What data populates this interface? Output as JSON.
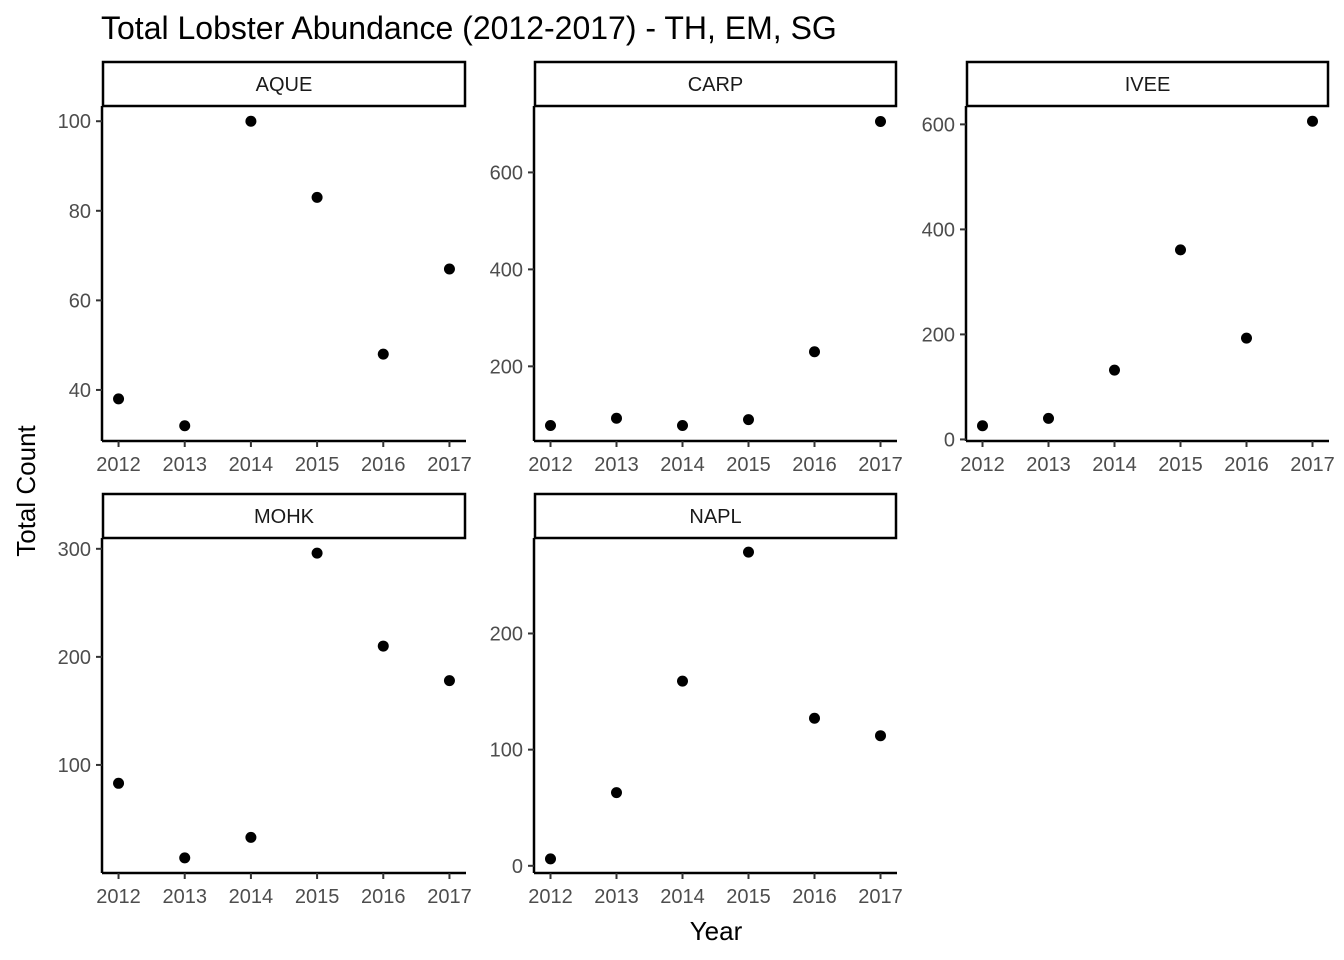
{
  "chart_data": {
    "type": "scatter",
    "title": "Total Lobster Abundance (2012-2017) - TH, EM, SG",
    "xlabel": "Year",
    "ylabel": "Total Count",
    "x": [
      2012,
      2013,
      2014,
      2015,
      2016,
      2017
    ],
    "grid": false,
    "legend": "none",
    "point_color": "#000000",
    "panels": [
      {
        "name": "AQUE",
        "values": [
          38,
          32,
          100,
          83,
          48,
          67
        ],
        "ylim": [
          28.6,
          103.4
        ],
        "yticks": [
          40,
          60,
          80,
          100
        ]
      },
      {
        "name": "CARP",
        "values": [
          78,
          93,
          78,
          90,
          230,
          705
        ],
        "ylim": [
          46,
          737
        ],
        "yticks": [
          200,
          400,
          600
        ]
      },
      {
        "name": "IVEE",
        "values": [
          26,
          40,
          132,
          361,
          193,
          606
        ],
        "ylim": [
          -3,
          635
        ],
        "yticks": [
          0,
          200,
          400,
          600
        ]
      },
      {
        "name": "MOHK",
        "values": [
          83,
          14,
          33,
          296,
          210,
          178
        ],
        "ylim": [
          0,
          310
        ],
        "yticks": [
          100,
          200,
          300
        ]
      },
      {
        "name": "NAPL",
        "values": [
          6,
          63,
          159,
          270,
          127,
          112
        ],
        "ylim": [
          -6.2,
          282.2
        ],
        "yticks": [
          0,
          100,
          200
        ]
      }
    ]
  }
}
